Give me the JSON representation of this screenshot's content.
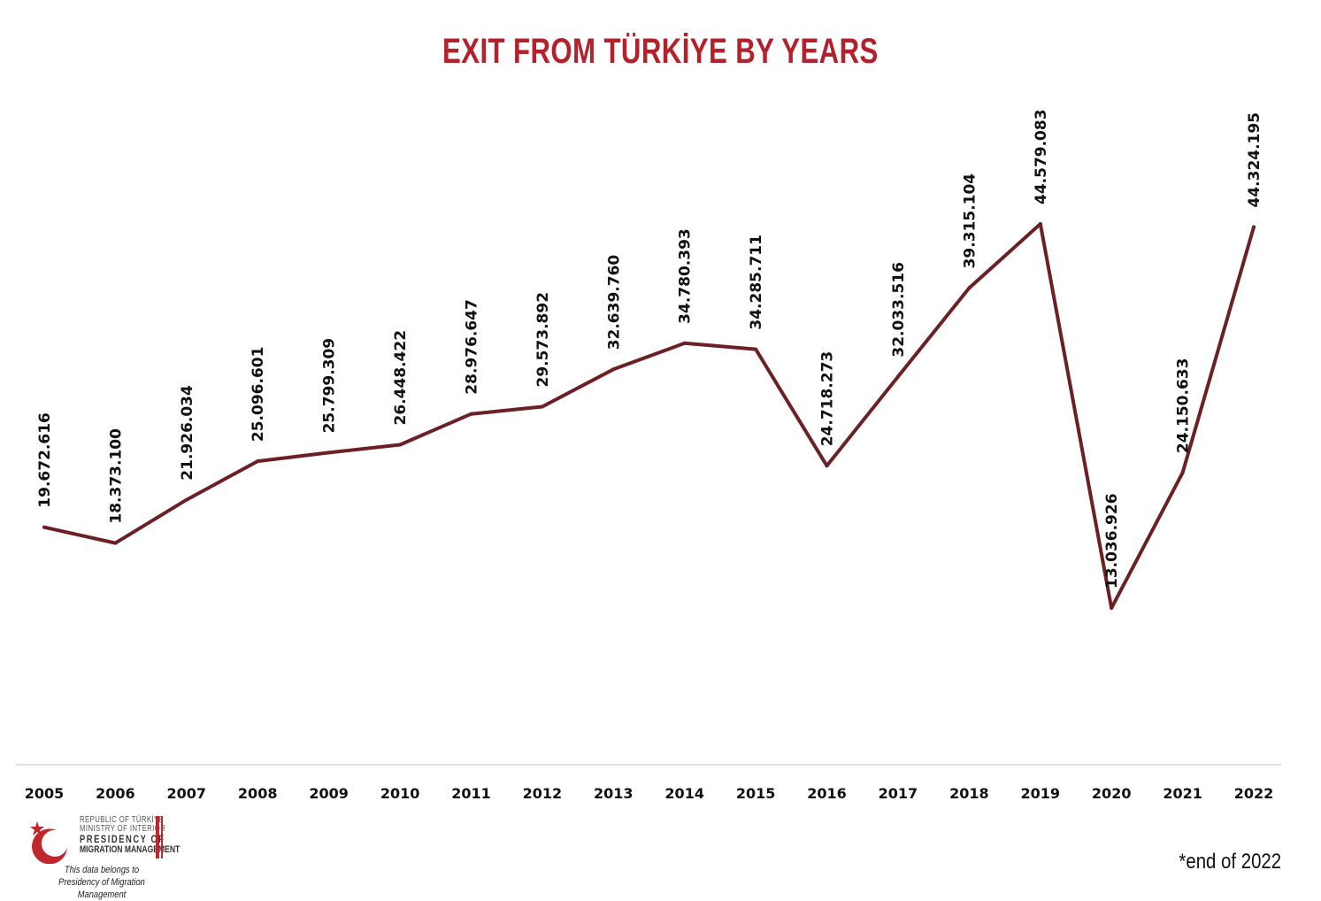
{
  "chart_data": {
    "type": "line",
    "title": "EXIT FROM TÜRKİYE BY YEARS",
    "x": [
      "2005",
      "2006",
      "2007",
      "2008",
      "2009",
      "2010",
      "2011",
      "2012",
      "2013",
      "2014",
      "2015",
      "2016",
      "2017",
      "2018",
      "2019",
      "2020",
      "2021",
      "2022"
    ],
    "series": [
      {
        "values": [
          19672616,
          18373100,
          21926034,
          25096601,
          25799309,
          26448422,
          28976647,
          29573892,
          32639760,
          34780393,
          34285711,
          24718273,
          32033516,
          39315104,
          44579083,
          13036926,
          24150633,
          44324195
        ],
        "labels": [
          "19.672.616",
          "18.373.100",
          "21.926.034",
          "25.096.601",
          "25.799.309",
          "26.448.422",
          "28.976.647",
          "29.573.892",
          "32.639.760",
          "34.780.393",
          "34.285.711",
          "24.718.273",
          "32.033.516",
          "39.315.104",
          "44.579.083",
          "13.036.926",
          "24.150.633",
          "44.324.195"
        ],
        "color": "#6b2024"
      }
    ],
    "xlabel": "",
    "ylabel": "",
    "grid": false,
    "legend": "none",
    "title_color": "#b3222c",
    "axis_color": "#d9d9d9"
  },
  "footnote": "*end of 2022",
  "logo": {
    "line1": "REPUBLIC OF TÜRKİYE",
    "line2": "MINISTRY OF INTERIOR",
    "line3": "PRESIDENCY OF",
    "line4": "MIGRATION MANAGEMENT",
    "note_line1": "This data belongs to",
    "note_line2": "Presidency of Migration Management",
    "brand_color": "#c0272d"
  }
}
